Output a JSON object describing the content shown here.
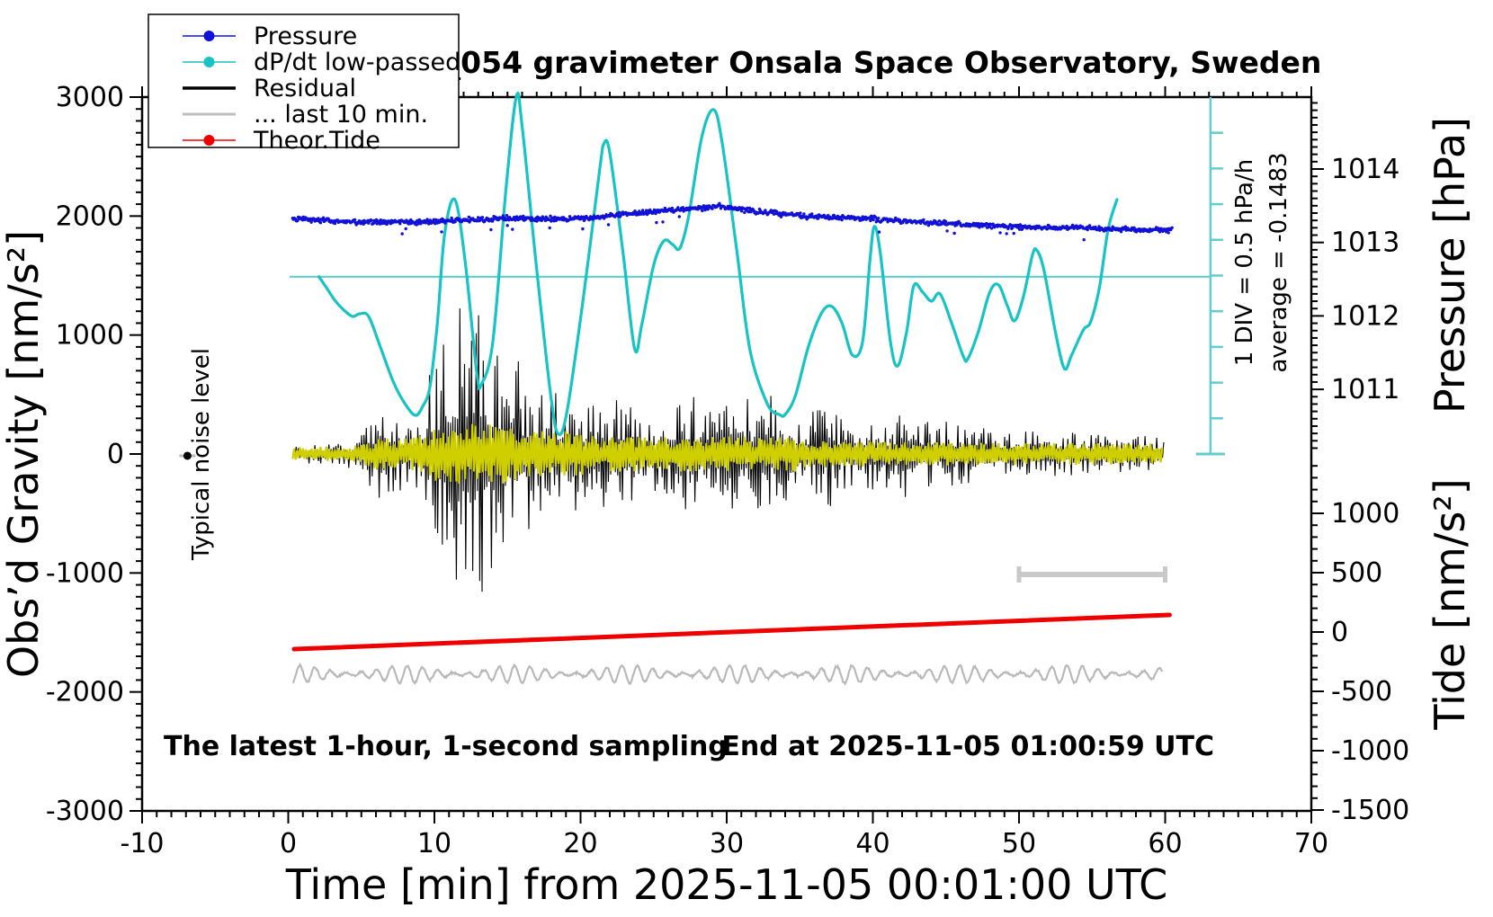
{
  "title": "SCG_054 gravimeter Onsala Space Observatory, Sweden",
  "annotations": {
    "sampling_note": "The latest 1-hour, 1-second sampling",
    "end_note": "End at 2025-11-05 01:00:59 UTC",
    "noise_label": "Typical noise level",
    "div_note": "1 DIV = 0.5 hPa/h",
    "average_note": "average = -0.1483"
  },
  "axes": {
    "x": {
      "label": "Time [min] from 2025-11-05 00:01:00 UTC",
      "min": -10,
      "max": 70,
      "major_ticks": [
        -10,
        0,
        10,
        20,
        30,
        40,
        50,
        60,
        70
      ],
      "minor_step": 1
    },
    "gravity": {
      "label": "Obs’d Gravity [nm/s²]",
      "min": -3000,
      "max": 3000,
      "major_ticks": [
        3000,
        2000,
        1000,
        0,
        -1000,
        -2000,
        -3000
      ],
      "minor_step": 100
    },
    "pressure": {
      "label": "Pressure [hPa]",
      "major_ticks": [
        1014,
        1013,
        1012,
        1011
      ],
      "minor_step": 0.1
    },
    "tide": {
      "label": "Tide [nm/s²]",
      "major_ticks": [
        1000,
        500,
        0,
        -500,
        -1000,
        -1500
      ],
      "minor_step": 100
    }
  },
  "legend": [
    {
      "label": "Pressure",
      "color": "#1111d8",
      "dot": true,
      "width": 1.5
    },
    {
      "label": "dP/dt low-passed",
      "color": "#17c3c3",
      "dot": true,
      "width": 1.5
    },
    {
      "label": "Residual",
      "color": "#000000",
      "dot": false,
      "width": 3.5
    },
    {
      "label": "... last 10 min.",
      "color": "#bfbfbf",
      "dot": false,
      "width": 3
    },
    {
      "label": "Theor.Tide",
      "color": "#ee0000",
      "dot": true,
      "width": 1.5
    }
  ],
  "colors": {
    "pressure": "#1111d8",
    "dpdt": "#17c3c3",
    "dpdt_scale": "#63cccc",
    "residual": "#000000",
    "residual_recent": "#cfcf00",
    "last10": "#b9b9b9",
    "window_bar": "#c9c9c9",
    "tide": "#ee0000"
  },
  "chart_data": {
    "type": "line",
    "x_unit": "minutes from 2025-11-05 00:01:00 UTC",
    "series": [
      {
        "name": "Pressure",
        "unit": "hPa",
        "style": "dotted-noisy",
        "points": [
          [
            0.3,
            1013.32
          ],
          [
            4.7,
            1013.28
          ],
          [
            9.7,
            1013.28
          ],
          [
            14.6,
            1013.33
          ],
          [
            19.6,
            1013.32
          ],
          [
            23.3,
            1013.39
          ],
          [
            27.0,
            1013.45
          ],
          [
            29.4,
            1013.49
          ],
          [
            31.9,
            1013.43
          ],
          [
            35.6,
            1013.35
          ],
          [
            39.3,
            1013.33
          ],
          [
            43.0,
            1013.28
          ],
          [
            46.7,
            1013.24
          ],
          [
            50.4,
            1013.21
          ],
          [
            54.1,
            1013.2
          ],
          [
            57.8,
            1013.17
          ],
          [
            60.5,
            1013.17
          ]
        ],
        "noise_sd_hPa": 0.035
      },
      {
        "name": "dP/dt low-passed",
        "unit": "gravity-axis nm/s² equivalent",
        "style": "smooth",
        "points": [
          [
            2.1,
            1490
          ],
          [
            2.6,
            1400
          ],
          [
            3.2,
            1290
          ],
          [
            3.8,
            1210
          ],
          [
            4.4,
            1156
          ],
          [
            4.9,
            1179
          ],
          [
            5.5,
            1156
          ],
          [
            6.3,
            900
          ],
          [
            7.2,
            604
          ],
          [
            8.0,
            420
          ],
          [
            8.7,
            325
          ],
          [
            9.2,
            400
          ],
          [
            9.7,
            567
          ],
          [
            10.2,
            1100
          ],
          [
            10.7,
            1852
          ],
          [
            11.4,
            2139
          ],
          [
            12.1,
            1625
          ],
          [
            12.9,
            680
          ],
          [
            13.2,
            582
          ],
          [
            14.0,
            945
          ],
          [
            14.9,
            2230
          ],
          [
            15.6,
            3000
          ],
          [
            16.0,
            2759
          ],
          [
            17.0,
            1550
          ],
          [
            18.0,
            454
          ],
          [
            18.5,
            166
          ],
          [
            19.1,
            378
          ],
          [
            20.2,
            1323
          ],
          [
            21.3,
            2381
          ],
          [
            21.6,
            2608
          ],
          [
            22.0,
            2532
          ],
          [
            22.9,
            1700
          ],
          [
            23.7,
            884
          ],
          [
            24.2,
            1096
          ],
          [
            25.0,
            1587
          ],
          [
            25.7,
            1791
          ],
          [
            26.3,
            1761
          ],
          [
            26.8,
            1731
          ],
          [
            27.4,
            2003
          ],
          [
            28.3,
            2668
          ],
          [
            29.1,
            2895
          ],
          [
            29.7,
            2608
          ],
          [
            30.7,
            1700
          ],
          [
            31.6,
            869
          ],
          [
            32.8,
            416
          ],
          [
            33.6,
            332
          ],
          [
            34.0,
            332
          ],
          [
            34.7,
            491
          ],
          [
            35.6,
            907
          ],
          [
            36.5,
            1187
          ],
          [
            37.2,
            1240
          ],
          [
            37.9,
            1096
          ],
          [
            38.6,
            831
          ],
          [
            39.3,
            945
          ],
          [
            39.8,
            1625
          ],
          [
            40.1,
            1912
          ],
          [
            40.5,
            1700
          ],
          [
            41.2,
            945
          ],
          [
            41.7,
            740
          ],
          [
            42.3,
            1021
          ],
          [
            42.8,
            1414
          ],
          [
            43.4,
            1361
          ],
          [
            44.0,
            1285
          ],
          [
            44.6,
            1346
          ],
          [
            45.4,
            1096
          ],
          [
            46.2,
            817
          ],
          [
            46.5,
            801
          ],
          [
            47.2,
            1021
          ],
          [
            48.0,
            1361
          ],
          [
            48.6,
            1421
          ],
          [
            49.2,
            1247
          ],
          [
            49.7,
            1119
          ],
          [
            50.3,
            1323
          ],
          [
            50.9,
            1663
          ],
          [
            51.2,
            1716
          ],
          [
            51.7,
            1550
          ],
          [
            52.5,
            1021
          ],
          [
            53.1,
            718
          ],
          [
            53.6,
            831
          ],
          [
            54.4,
            1043
          ],
          [
            54.9,
            1111
          ],
          [
            55.5,
            1399
          ],
          [
            56.1,
            1890
          ],
          [
            56.7,
            2139
          ]
        ]
      },
      {
        "name": "dP/dt average line",
        "value": 1490,
        "t_start": 0.1,
        "t_end": 63.1
      },
      {
        "name": "dP/dt scale bar",
        "t": 63.1,
        "from": 0,
        "to": 3000,
        "divisions": 10,
        "div_meaning": "1 DIV = 0.5 hPa/h",
        "average": -0.1483
      },
      {
        "name": "Residual",
        "unit": "nm/s²",
        "style": "dense-oscillation",
        "center": 0,
        "envelope": [
          [
            0,
            45
          ],
          [
            1,
            75
          ],
          [
            2,
            91
          ],
          [
            3,
            91
          ],
          [
            4,
            106
          ],
          [
            5,
            189
          ],
          [
            5.5,
            340
          ],
          [
            6,
            416
          ],
          [
            6.5,
            378
          ],
          [
            7,
            453
          ],
          [
            7.5,
            340
          ],
          [
            8,
            264
          ],
          [
            8.5,
            302
          ],
          [
            9,
            378
          ],
          [
            9.5,
            604
          ],
          [
            10,
            831
          ],
          [
            10.5,
            982
          ],
          [
            11,
            1133
          ],
          [
            11.5,
            1285
          ],
          [
            12,
            1322
          ],
          [
            12.5,
            1360
          ],
          [
            13,
            1209
          ],
          [
            13.5,
            1133
          ],
          [
            14,
            982
          ],
          [
            15,
            831
          ],
          [
            15.5,
            907
          ],
          [
            16,
            718
          ],
          [
            17,
            529
          ],
          [
            18,
            491
          ],
          [
            19,
            567
          ],
          [
            20,
            453
          ],
          [
            21,
            416
          ],
          [
            22,
            529
          ],
          [
            23,
            453
          ],
          [
            24,
            340
          ],
          [
            25,
            378
          ],
          [
            26,
            416
          ],
          [
            27,
            491
          ],
          [
            27.5,
            567
          ],
          [
            28,
            453
          ],
          [
            29,
            378
          ],
          [
            30,
            567
          ],
          [
            30.5,
            642
          ],
          [
            31,
            529
          ],
          [
            32,
            453
          ],
          [
            32.5,
            604
          ],
          [
            33,
            529
          ],
          [
            34,
            416
          ],
          [
            35,
            340
          ],
          [
            36,
            378
          ],
          [
            37,
            453
          ],
          [
            38,
            302
          ],
          [
            39,
            264
          ],
          [
            40,
            340
          ],
          [
            41,
            302
          ],
          [
            42,
            378
          ],
          [
            43,
            340
          ],
          [
            44,
            264
          ],
          [
            45,
            302
          ],
          [
            46,
            264
          ],
          [
            47,
            227
          ],
          [
            48,
            264
          ],
          [
            49,
            227
          ],
          [
            50,
            212
          ],
          [
            51,
            227
          ],
          [
            52,
            189
          ],
          [
            53,
            212
          ],
          [
            54,
            189
          ],
          [
            55,
            166
          ],
          [
            56,
            189
          ],
          [
            57,
            151
          ],
          [
            58,
            166
          ],
          [
            59,
            151
          ],
          [
            60,
            136
          ]
        ]
      },
      {
        "name": "Residual recent overlay",
        "unit": "nm/s²",
        "style": "dense-oscillation",
        "center": 0,
        "envelope": [
          [
            0,
            60
          ],
          [
            4,
            60
          ],
          [
            5,
            120
          ],
          [
            9,
            151
          ],
          [
            10,
            230
          ],
          [
            12,
            264
          ],
          [
            15,
            264
          ],
          [
            16,
            200
          ],
          [
            20,
            189
          ],
          [
            21,
            151
          ],
          [
            35,
            151
          ],
          [
            36,
            110
          ],
          [
            50,
            91
          ],
          [
            60,
            91
          ]
        ]
      },
      {
        "name": "... last 10 min.",
        "unit": "nm/s² (gravity axis, offset)",
        "style": "wiggle",
        "center": -1851,
        "amplitude": 68,
        "period_min": 1.05,
        "t_start": 0.3,
        "t_end": 59.8
      },
      {
        "name": "Theor.Tide",
        "unit": "nm/s² (tide axis)",
        "style": "line",
        "points": [
          [
            0.4,
            -144
          ],
          [
            60.3,
            144
          ]
        ]
      },
      {
        "name": "last-10-min window bar",
        "t_start": 50,
        "t_end": 60,
        "tide_value": 485
      },
      {
        "name": "Typical noise level marker",
        "t": -6.9,
        "gravity_value": -15
      }
    ]
  }
}
